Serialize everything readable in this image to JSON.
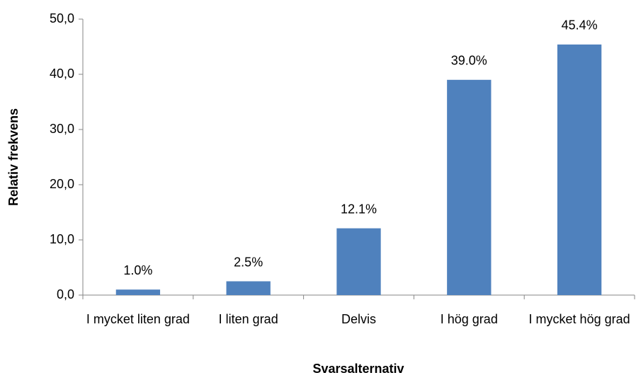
{
  "chart_data": {
    "type": "bar",
    "x_label": "Svarsalternativ",
    "y_label": "Relativ frekvens",
    "categories": [
      "I mycket liten grad",
      "I liten grad",
      "Delvis",
      "I hög grad",
      "I mycket hög grad"
    ],
    "values": [
      1.0,
      2.5,
      12.1,
      39.0,
      45.4
    ],
    "value_labels": [
      "1.0%",
      "2.5%",
      "12.1%",
      "39.0%",
      "45.4%"
    ],
    "color": "#4f81bd",
    "ylim": [
      0,
      50
    ],
    "yticks": [
      {
        "value": 0,
        "label": "0,0"
      },
      {
        "value": 10,
        "label": "10,0"
      },
      {
        "value": 20,
        "label": "20,0"
      },
      {
        "value": 30,
        "label": "30,0"
      },
      {
        "value": 40,
        "label": "40,0"
      },
      {
        "value": 50,
        "label": "50,0"
      }
    ],
    "grid": false
  }
}
